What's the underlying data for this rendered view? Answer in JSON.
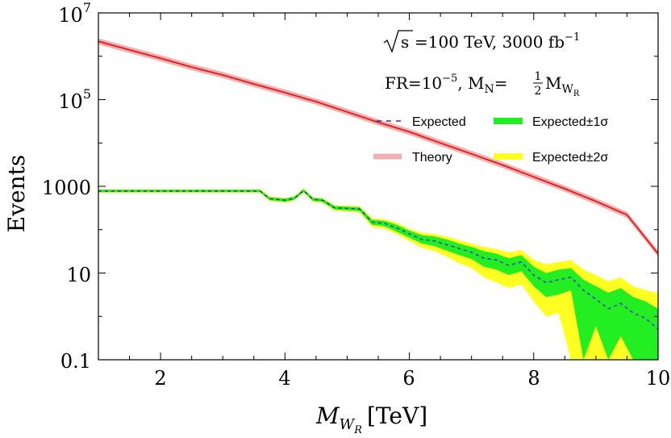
{
  "chart_data": {
    "type": "area",
    "ylabel": "Events",
    "xlabel_main": "M",
    "xlabel_sub": "W",
    "xlabel_subsub": "R",
    "xlabel_unit": "[TeV]",
    "xlim": [
      1,
      10
    ],
    "ylim": [
      0.1,
      10000000
    ],
    "yscale": "log",
    "grid": false,
    "x_ticks": [
      2,
      4,
      6,
      8,
      10
    ],
    "x_tick_labels": [
      "2",
      "4",
      "6",
      "8",
      "10"
    ],
    "y_ticks": [
      0.1,
      10,
      1000,
      100000,
      10000000
    ],
    "y_tick_labels_plain": [
      "0.1",
      "10",
      "1000"
    ],
    "y_tick_labels_pow": [
      {
        "base": "10",
        "exp": "5",
        "value": 100000
      },
      {
        "base": "10",
        "exp": "7",
        "value": 10000000
      }
    ],
    "annotation_1": {
      "sqrt_s": "s",
      "energy": "=100 TeV, 3000 fb",
      "lumi_exp": "−1"
    },
    "annotation_2": {
      "fr_base": "FR=10",
      "fr_exp": "−5",
      "mn": ", M",
      "mn_sub": "N",
      "eq": "=",
      "frac_num": "1",
      "frac_den": "2",
      "mw": "M",
      "mw_sub": "W",
      "mw_subsub": "R"
    },
    "legend": [
      {
        "name": "Expected",
        "color": "#1f2fd6",
        "style": "dashed"
      },
      {
        "name": "Expected±1σ",
        "color": "#22ee22",
        "style": "band"
      },
      {
        "name": "Theory",
        "color": "#f4b0b0",
        "style": "band"
      },
      {
        "name": "Expected±2σ",
        "color": "#ffff22",
        "style": "band"
      }
    ],
    "series": [
      {
        "name": "Theory",
        "color": "#e41a1a",
        "x": [
          1.0,
          1.5,
          2.0,
          2.5,
          3.0,
          3.5,
          4.0,
          4.5,
          5.0,
          5.5,
          6.0,
          6.5,
          7.0,
          7.5,
          8.0,
          8.5,
          9.0,
          9.5,
          10.0
        ],
        "y": [
          2200000,
          1400000,
          900000,
          560000,
          370000,
          230000,
          145000,
          90000,
          52000,
          30000,
          18000,
          10000,
          5600,
          3100,
          1650,
          880,
          450,
          220,
          28
        ]
      },
      {
        "name": "Expected",
        "color": "#1f2fd6",
        "x": [
          1.0,
          3.6,
          3.75,
          4.0,
          4.15,
          4.3,
          4.45,
          4.6,
          4.8,
          5.0,
          5.2,
          5.4,
          5.6,
          5.8,
          6.0,
          6.2,
          6.4,
          6.6,
          6.8,
          7.0,
          7.2,
          7.4,
          7.6,
          7.8,
          8.0,
          8.2,
          8.4,
          8.6,
          8.8,
          9.0,
          9.2,
          9.4,
          9.6,
          9.8,
          10.0
        ],
        "y": [
          780,
          780,
          520,
          480,
          530,
          800,
          500,
          480,
          320,
          310,
          300,
          150,
          140,
          110,
          80,
          60,
          55,
          45,
          37,
          30,
          22,
          20,
          15,
          18,
          9,
          6,
          7,
          8,
          4,
          2.5,
          1.5,
          2,
          1.2,
          0.9,
          0.5
        ]
      },
      {
        "name": "Expected±1σ",
        "color": "#22ee22",
        "x": [
          1.0,
          3.6,
          3.75,
          4.0,
          4.15,
          4.3,
          4.45,
          4.6,
          4.8,
          5.0,
          5.2,
          5.4,
          5.6,
          5.8,
          6.0,
          6.2,
          6.4,
          6.6,
          6.8,
          7.0,
          7.2,
          7.4,
          7.6,
          7.8,
          8.0,
          8.2,
          8.4,
          8.6,
          8.8,
          9.0,
          9.2,
          9.4,
          9.6,
          9.8,
          10.0
        ],
        "upper": [
          830,
          830,
          560,
          520,
          570,
          860,
          540,
          520,
          350,
          340,
          330,
          170,
          160,
          130,
          95,
          75,
          70,
          60,
          48,
          40,
          32,
          28,
          22,
          26,
          14,
          10,
          12,
          13,
          7,
          5,
          3.5,
          4.5,
          2.8,
          2.2,
          1.5
        ],
        "lower": [
          730,
          730,
          480,
          440,
          490,
          740,
          460,
          440,
          290,
          280,
          270,
          130,
          120,
          90,
          65,
          48,
          42,
          33,
          26,
          21,
          14,
          12,
          9,
          11,
          5,
          2.8,
          3.2,
          4,
          0.1,
          0.6,
          0.1,
          0.35,
          0.1,
          0.1,
          0.1
        ]
      },
      {
        "name": "Expected±2σ",
        "color": "#ffff22",
        "x": [
          1.0,
          3.6,
          3.75,
          4.0,
          4.15,
          4.3,
          4.45,
          4.6,
          4.8,
          5.0,
          5.2,
          5.4,
          5.6,
          5.8,
          6.0,
          6.2,
          6.4,
          6.6,
          6.8,
          7.0,
          7.2,
          7.4,
          7.6,
          7.8,
          8.0,
          8.2,
          8.4,
          8.6,
          8.8,
          9.0,
          9.2,
          9.4,
          9.6,
          9.8,
          10.0
        ],
        "upper": [
          860,
          860,
          590,
          545,
          595,
          900,
          565,
          545,
          370,
          360,
          350,
          185,
          175,
          145,
          105,
          85,
          80,
          70,
          58,
          48,
          40,
          36,
          30,
          34,
          20,
          16,
          18,
          20,
          12,
          9,
          6.5,
          8,
          5,
          4,
          3.5
        ],
        "lower": [
          710,
          710,
          460,
          420,
          470,
          710,
          440,
          420,
          270,
          260,
          250,
          115,
          105,
          78,
          55,
          38,
          32,
          24,
          17,
          13,
          8,
          6,
          4.5,
          5.5,
          2.2,
          1.0,
          1.2,
          0.1,
          0.1,
          0.1,
          0.1,
          0.1,
          0.1,
          0.1,
          0.1
        ]
      }
    ]
  }
}
